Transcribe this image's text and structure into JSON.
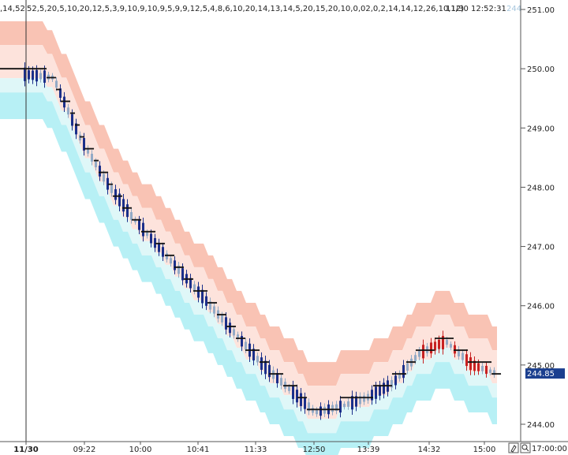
{
  "header": {
    "params_left": ",14,52",
    "params": "52,5,20,5,10,20,12,5,3,9,10,9,10,9,5,9,9,12,5,4,8,6,10,20,14,13,14,5,20,15,20,10,0,02,0,2,14,14,12,26,10,12)",
    "datetime": "11/30 12:52:31",
    "dim_value": "244"
  },
  "price_tag": {
    "label": "244.85"
  },
  "time_right": "17:00:00",
  "toolbar_icons": [
    "edit-icon",
    "zoom-icon"
  ],
  "chart_data": {
    "type": "candlestick",
    "y_axis": {
      "range": [
        243.9,
        251.05
      ],
      "ticks": [
        {
          "value": 251,
          "label": "251.00"
        },
        {
          "value": 250,
          "label": "250.00"
        },
        {
          "value": 249,
          "label": "249.00"
        },
        {
          "value": 248,
          "label": "248.00"
        },
        {
          "value": 247,
          "label": "247.00"
        },
        {
          "value": 246,
          "label": "246.00"
        },
        {
          "value": 245,
          "label": "245.00"
        },
        {
          "value": 244,
          "label": "244.00"
        }
      ]
    },
    "x_axis": {
      "ticks": [
        "11/30",
        "09:22",
        "10:00",
        "10:41",
        "11:33",
        "12:50",
        "13:39",
        "14:32",
        "15:00"
      ]
    },
    "colors": {
      "upper_band": "#f9c3b4",
      "upper_inner": "#fde3dc",
      "lower_inner": "#dff7f8",
      "lower_band": "#b7f0f5",
      "trend_dots": "#111111",
      "down_candle": "#1b2f8a",
      "down_candle_light": "#93aac6",
      "up_candle": "#c72222",
      "divider": "#333333",
      "price_tag": "#1b3f8f"
    },
    "price_series": [
      249.95,
      249.9,
      249.85,
      248.85,
      248.1,
      247.5,
      247.0,
      246.5,
      246.0,
      245.5,
      245.0,
      244.6,
      244.2,
      244.3,
      244.45,
      244.7,
      245.2,
      245.4,
      245.0,
      244.85
    ],
    "last_price": 244.85
  }
}
